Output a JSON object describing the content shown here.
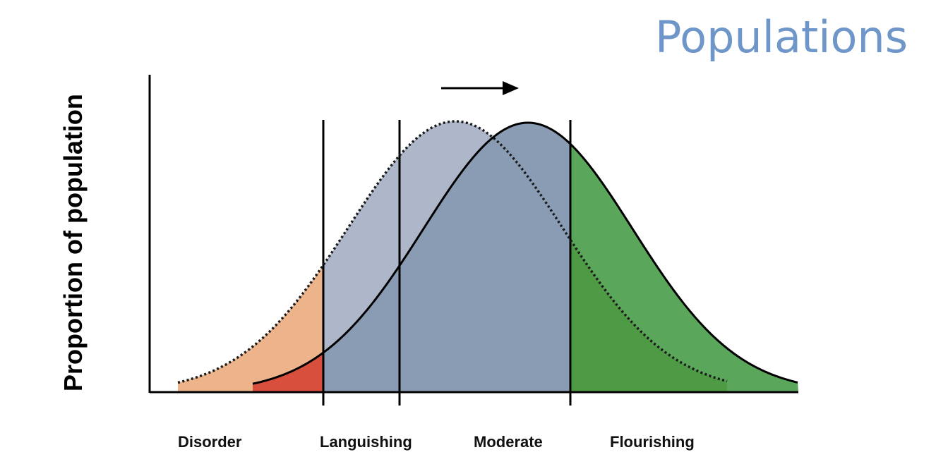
{
  "title": "Populations",
  "ylabel": "Proportion of population",
  "categories": [
    {
      "id": "disorder",
      "label": "Disorder"
    },
    {
      "id": "languishing",
      "label": "Languishing"
    },
    {
      "id": "moderate",
      "label": "Moderate"
    },
    {
      "id": "flourishing",
      "label": "Flourishing"
    }
  ],
  "colors": {
    "title": "#6f96c9",
    "original_fill": "#adb7c9",
    "shifted_fill": "#8a9bb4",
    "disorder_original": "#edb48b",
    "disorder_shifted": "#d94f3d",
    "flourishing_shifted": "#5aa75c",
    "flourishing_overlap": "#4e9a45"
  },
  "arrow": {
    "direction": "right",
    "icon": "arrow-right-icon"
  },
  "curves": [
    {
      "id": "original",
      "style": "dotted"
    },
    {
      "id": "shifted",
      "style": "solid"
    }
  ]
}
